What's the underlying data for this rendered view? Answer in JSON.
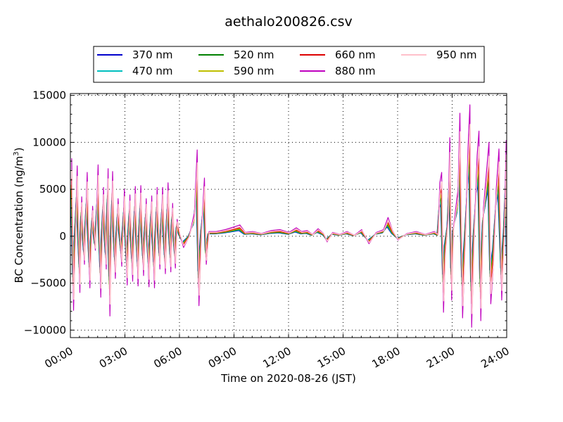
{
  "chart_data": {
    "type": "line",
    "title": "aethalo200826.csv",
    "xlabel": "Time on 2020-08-26 (JST)",
    "ylabel": {
      "main": "BC Concentration (ng/m",
      "sup": "3",
      "end": ")"
    },
    "x_unit": "hours",
    "xlim": [
      0,
      24
    ],
    "ylim": [
      -10800,
      15200
    ],
    "x_ticks": [
      0,
      3,
      6,
      9,
      12,
      15,
      18,
      21,
      24
    ],
    "x_tick_labels": [
      "00:00",
      "03:00",
      "06:00",
      "09:00",
      "12:00",
      "15:00",
      "18:00",
      "21:00",
      "24:00"
    ],
    "y_ticks": [
      -10000,
      -5000,
      0,
      5000,
      10000,
      15000
    ],
    "y_tick_labels": [
      "−10000",
      "−5000",
      "0",
      "5000",
      "10000",
      "15000"
    ],
    "grid": true,
    "legend_position": "top",
    "legend_columns": 4,
    "series": [
      {
        "name": "370 nm",
        "color": "#0000cc",
        "scale": 0.5
      },
      {
        "name": "470 nm",
        "color": "#00bfbf",
        "scale": 0.55
      },
      {
        "name": "520 nm",
        "color": "#008000",
        "scale": 0.6
      },
      {
        "name": "590 nm",
        "color": "#bfbf00",
        "scale": 0.66
      },
      {
        "name": "660 nm",
        "color": "#dd0000",
        "scale": 0.74
      },
      {
        "name": "880 nm",
        "color": "#bf00bf",
        "scale": 1.0
      },
      {
        "name": "950 nm",
        "color": "#ffc0cb",
        "scale": 0.85
      }
    ],
    "peaks_880nm": [
      [
        0.05,
        8300
      ],
      [
        0.15,
        -7900
      ],
      [
        0.35,
        7500
      ],
      [
        0.5,
        -6000
      ],
      [
        0.6,
        4200
      ],
      [
        0.75,
        -3000
      ],
      [
        0.9,
        6800
      ],
      [
        1.05,
        -5500
      ],
      [
        1.2,
        3200
      ],
      [
        1.35,
        -1500
      ],
      [
        1.5,
        7600
      ],
      [
        1.65,
        -6500
      ],
      [
        1.8,
        5200
      ],
      [
        1.95,
        -3500
      ],
      [
        2.05,
        7200
      ],
      [
        2.15,
        -8500
      ],
      [
        2.3,
        6900
      ],
      [
        2.45,
        -4500
      ],
      [
        2.6,
        4000
      ],
      [
        2.8,
        -3200
      ],
      [
        2.95,
        5000
      ],
      [
        3.1,
        -5200
      ],
      [
        3.25,
        4400
      ],
      [
        3.4,
        -4800
      ],
      [
        3.55,
        5300
      ],
      [
        3.7,
        -5300
      ],
      [
        3.85,
        5400
      ],
      [
        4.0,
        -4200
      ],
      [
        4.15,
        4000
      ],
      [
        4.3,
        -5400
      ],
      [
        4.45,
        4300
      ],
      [
        4.6,
        -5500
      ],
      [
        4.75,
        5200
      ],
      [
        4.9,
        -3500
      ],
      [
        5.05,
        5200
      ],
      [
        5.2,
        -4000
      ],
      [
        5.35,
        5700
      ],
      [
        5.5,
        -3800
      ],
      [
        5.6,
        3500
      ],
      [
        5.75,
        -3400
      ],
      [
        5.85,
        1800
      ],
      [
        6.0,
        200
      ],
      [
        6.2,
        -1200
      ],
      [
        6.5,
        -100
      ],
      [
        6.8,
        2500
      ],
      [
        6.95,
        9200
      ],
      [
        7.05,
        -7400
      ],
      [
        7.2,
        1000
      ],
      [
        7.35,
        6200
      ],
      [
        7.45,
        -3000
      ],
      [
        7.6,
        500
      ],
      [
        8.0,
        500
      ],
      [
        8.5,
        700
      ],
      [
        9.0,
        1000
      ],
      [
        9.3,
        1200
      ],
      [
        9.6,
        400
      ],
      [
        10.0,
        500
      ],
      [
        10.5,
        300
      ],
      [
        11.0,
        600
      ],
      [
        11.5,
        700
      ],
      [
        12.0,
        400
      ],
      [
        12.4,
        900
      ],
      [
        12.7,
        500
      ],
      [
        13.0,
        600
      ],
      [
        13.3,
        200
      ],
      [
        13.6,
        800
      ],
      [
        13.9,
        300
      ],
      [
        14.1,
        -600
      ],
      [
        14.4,
        400
      ],
      [
        14.8,
        200
      ],
      [
        15.2,
        500
      ],
      [
        15.6,
        100
      ],
      [
        16.0,
        700
      ],
      [
        16.4,
        -800
      ],
      [
        16.8,
        400
      ],
      [
        17.2,
        700
      ],
      [
        17.45,
        2000
      ],
      [
        17.7,
        600
      ],
      [
        18.0,
        -400
      ],
      [
        18.5,
        300
      ],
      [
        19.0,
        500
      ],
      [
        19.5,
        200
      ],
      [
        20.0,
        500
      ],
      [
        20.2,
        200
      ],
      [
        20.3,
        5700
      ],
      [
        20.4,
        6800
      ],
      [
        20.5,
        -8100
      ],
      [
        20.6,
        -2000
      ],
      [
        20.75,
        2000
      ],
      [
        20.85,
        10500
      ],
      [
        20.95,
        -6800
      ],
      [
        21.05,
        1000
      ],
      [
        21.3,
        5000
      ],
      [
        21.4,
        13100
      ],
      [
        21.55,
        -8700
      ],
      [
        21.7,
        -500
      ],
      [
        21.85,
        9400
      ],
      [
        21.95,
        14000
      ],
      [
        22.05,
        -9700
      ],
      [
        22.2,
        1000
      ],
      [
        22.35,
        8600
      ],
      [
        22.45,
        11200
      ],
      [
        22.55,
        -9000
      ],
      [
        22.7,
        3000
      ],
      [
        22.85,
        6500
      ],
      [
        23.0,
        10000
      ],
      [
        23.1,
        -7200
      ],
      [
        23.25,
        -3000
      ],
      [
        23.4,
        5000
      ],
      [
        23.55,
        9300
      ],
      [
        23.7,
        -6800
      ],
      [
        23.85,
        1000
      ],
      [
        23.95,
        10200
      ],
      [
        24.0,
        -3800
      ]
    ]
  }
}
